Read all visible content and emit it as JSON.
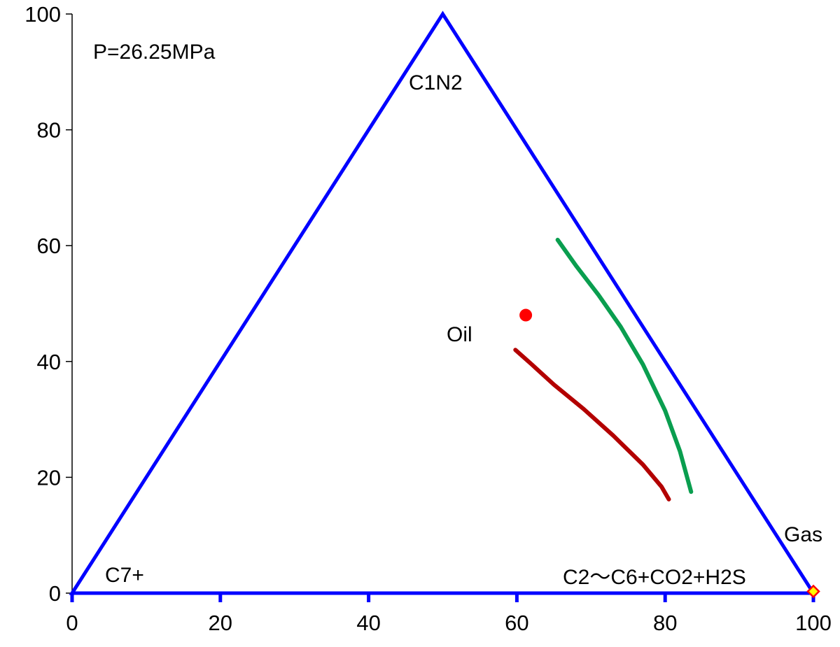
{
  "chart_data": {
    "type": "scatter",
    "title": "",
    "xlabel": "",
    "ylabel": "",
    "xlim": [
      0,
      100
    ],
    "ylim": [
      0,
      100
    ],
    "x_ticks": [
      0,
      20,
      40,
      60,
      80,
      100
    ],
    "y_ticks": [
      0,
      20,
      40,
      60,
      80,
      100
    ],
    "grid": false,
    "legend": "none",
    "annotations": {
      "pressure": "P=26.25MPa",
      "top_vertex": "C1N2",
      "left_vertex": "C7+",
      "right_vertex": "C2～C6+CO2+H2S",
      "oil": "Oil",
      "gas": "Gas"
    },
    "triangle": {
      "points": [
        [
          0,
          0
        ],
        [
          50,
          100
        ],
        [
          100,
          0
        ]
      ],
      "color": "#0000ff"
    },
    "series": [
      {
        "type": "line",
        "color": "#0a9e4f",
        "points": [
          [
            65.5,
            61
          ],
          [
            68,
            56.5
          ],
          [
            71,
            51.5
          ],
          [
            74,
            46
          ],
          [
            77,
            39.5
          ],
          [
            80,
            31.5
          ],
          [
            82,
            24.5
          ],
          [
            83.5,
            17.5
          ]
        ]
      },
      {
        "type": "line",
        "color": "#b30000",
        "points": [
          [
            59.8,
            42
          ],
          [
            62,
            39.5
          ],
          [
            65,
            36
          ],
          [
            69,
            31.8
          ],
          [
            73,
            27.2
          ],
          [
            77,
            22.2
          ],
          [
            79.5,
            18.4
          ],
          [
            80.5,
            16.2
          ]
        ]
      },
      {
        "type": "point",
        "marker": "circle",
        "color": "#ff0000",
        "points": [
          [
            61.2,
            48
          ]
        ]
      },
      {
        "type": "point",
        "marker": "diamond",
        "color": "#ffff00",
        "edge_color": "#ff0000",
        "points": [
          [
            100,
            0.3
          ]
        ]
      }
    ]
  }
}
